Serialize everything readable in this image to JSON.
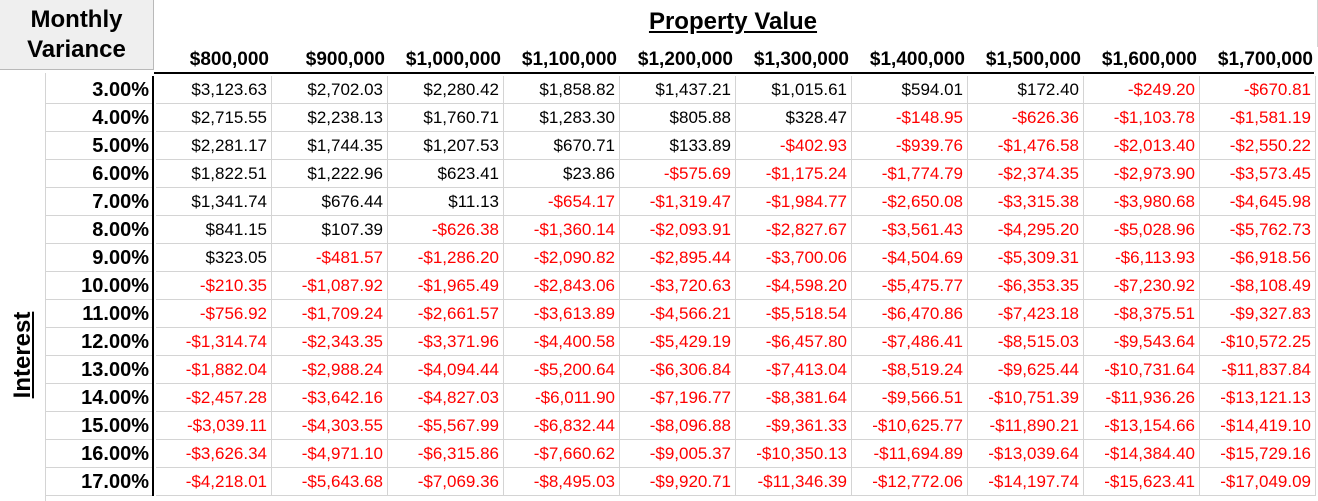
{
  "corner": {
    "line1": "Monthly",
    "line2": "Variance"
  },
  "property_value_title": "Property Value",
  "interest_label": "Interest",
  "property_values": [
    "$800,000",
    "$900,000",
    "$1,000,000",
    "$1,100,000",
    "$1,200,000",
    "$1,300,000",
    "$1,400,000",
    "$1,500,000",
    "$1,600,000",
    "$1,700,000"
  ],
  "rows": [
    {
      "rate": "3.00%",
      "values": [
        "$3,123.63",
        "$2,702.03",
        "$2,280.42",
        "$1,858.82",
        "$1,437.21",
        "$1,015.61",
        "$594.01",
        "$172.40",
        "-$249.20",
        "-$670.81"
      ]
    },
    {
      "rate": "4.00%",
      "values": [
        "$2,715.55",
        "$2,238.13",
        "$1,760.71",
        "$1,283.30",
        "$805.88",
        "$328.47",
        "-$148.95",
        "-$626.36",
        "-$1,103.78",
        "-$1,581.19"
      ]
    },
    {
      "rate": "5.00%",
      "values": [
        "$2,281.17",
        "$1,744.35",
        "$1,207.53",
        "$670.71",
        "$133.89",
        "-$402.93",
        "-$939.76",
        "-$1,476.58",
        "-$2,013.40",
        "-$2,550.22"
      ]
    },
    {
      "rate": "6.00%",
      "values": [
        "$1,822.51",
        "$1,222.96",
        "$623.41",
        "$23.86",
        "-$575.69",
        "-$1,175.24",
        "-$1,774.79",
        "-$2,374.35",
        "-$2,973.90",
        "-$3,573.45"
      ]
    },
    {
      "rate": "7.00%",
      "values": [
        "$1,341.74",
        "$676.44",
        "$11.13",
        "-$654.17",
        "-$1,319.47",
        "-$1,984.77",
        "-$2,650.08",
        "-$3,315.38",
        "-$3,980.68",
        "-$4,645.98"
      ]
    },
    {
      "rate": "8.00%",
      "values": [
        "$841.15",
        "$107.39",
        "-$626.38",
        "-$1,360.14",
        "-$2,093.91",
        "-$2,827.67",
        "-$3,561.43",
        "-$4,295.20",
        "-$5,028.96",
        "-$5,762.73"
      ]
    },
    {
      "rate": "9.00%",
      "values": [
        "$323.05",
        "-$481.57",
        "-$1,286.20",
        "-$2,090.82",
        "-$2,895.44",
        "-$3,700.06",
        "-$4,504.69",
        "-$5,309.31",
        "-$6,113.93",
        "-$6,918.56"
      ]
    },
    {
      "rate": "10.00%",
      "values": [
        "-$210.35",
        "-$1,087.92",
        "-$1,965.49",
        "-$2,843.06",
        "-$3,720.63",
        "-$4,598.20",
        "-$5,475.77",
        "-$6,353.35",
        "-$7,230.92",
        "-$8,108.49"
      ]
    },
    {
      "rate": "11.00%",
      "values": [
        "-$756.92",
        "-$1,709.24",
        "-$2,661.57",
        "-$3,613.89",
        "-$4,566.21",
        "-$5,518.54",
        "-$6,470.86",
        "-$7,423.18",
        "-$8,375.51",
        "-$9,327.83"
      ]
    },
    {
      "rate": "12.00%",
      "values": [
        "-$1,314.74",
        "-$2,343.35",
        "-$3,371.96",
        "-$4,400.58",
        "-$5,429.19",
        "-$6,457.80",
        "-$7,486.41",
        "-$8,515.03",
        "-$9,543.64",
        "-$10,572.25"
      ]
    },
    {
      "rate": "13.00%",
      "values": [
        "-$1,882.04",
        "-$2,988.24",
        "-$4,094.44",
        "-$5,200.64",
        "-$6,306.84",
        "-$7,413.04",
        "-$8,519.24",
        "-$9,625.44",
        "-$10,731.64",
        "-$11,837.84"
      ]
    },
    {
      "rate": "14.00%",
      "values": [
        "-$2,457.28",
        "-$3,642.16",
        "-$4,827.03",
        "-$6,011.90",
        "-$7,196.77",
        "-$8,381.64",
        "-$9,566.51",
        "-$10,751.39",
        "-$11,936.26",
        "-$13,121.13"
      ]
    },
    {
      "rate": "15.00%",
      "values": [
        "-$3,039.11",
        "-$4,303.55",
        "-$5,567.99",
        "-$6,832.44",
        "-$8,096.88",
        "-$9,361.33",
        "-$10,625.77",
        "-$11,890.21",
        "-$13,154.66",
        "-$14,419.10"
      ]
    },
    {
      "rate": "16.00%",
      "values": [
        "-$3,626.34",
        "-$4,971.10",
        "-$6,315.86",
        "-$7,660.62",
        "-$9,005.37",
        "-$10,350.13",
        "-$11,694.89",
        "-$13,039.64",
        "-$14,384.40",
        "-$15,729.16"
      ]
    },
    {
      "rate": "17.00%",
      "values": [
        "-$4,218.01",
        "-$5,643.68",
        "-$7,069.36",
        "-$8,495.03",
        "-$9,920.71",
        "-$11,346.39",
        "-$12,772.06",
        "-$14,197.74",
        "-$15,623.41",
        "-$17,049.09"
      ]
    }
  ],
  "colors": {
    "negative": "#ff0000",
    "positive": "#000000"
  }
}
